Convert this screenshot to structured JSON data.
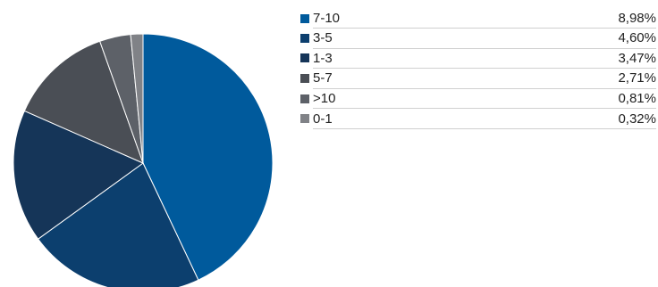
{
  "chart_data": {
    "type": "pie",
    "categories": [
      "7-10",
      "3-5",
      "1-3",
      "5-7",
      ">10",
      "0-1"
    ],
    "values": [
      8.98,
      4.6,
      3.47,
      2.71,
      0.81,
      0.32
    ],
    "value_labels": [
      "8,98%",
      "4,60%",
      "3,47%",
      "2,71%",
      "0,81%",
      "0,32%"
    ],
    "colors": [
      "#005a9c",
      "#0c3f6e",
      "#153558",
      "#4a4e55",
      "#5d6168",
      "#808287"
    ],
    "start_angle_deg": 0,
    "direction": "clockwise",
    "legend_position": "right"
  }
}
